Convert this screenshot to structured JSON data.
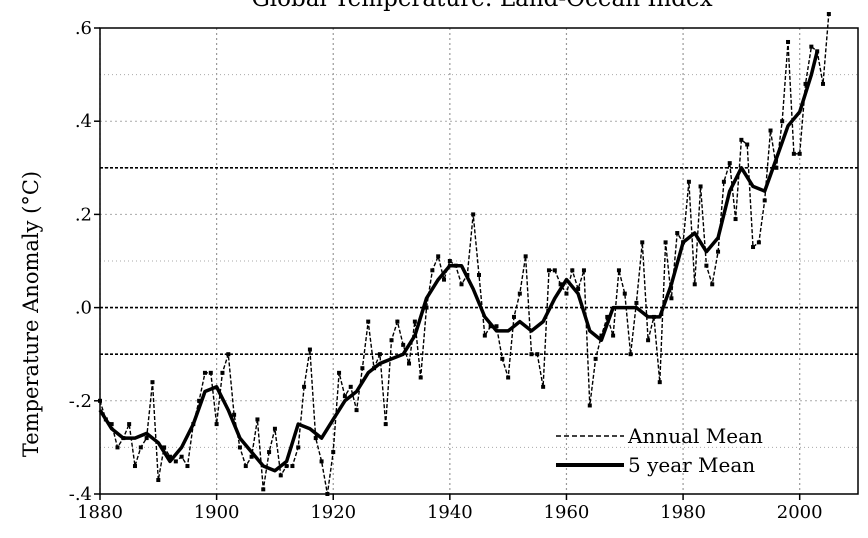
{
  "chart_data": {
    "type": "line",
    "title": "Global Temperature: Land-Ocean Index",
    "ylabel": "Temperature Anomaly (°C)",
    "xlabel": "",
    "xlim": [
      1880,
      2010
    ],
    "ylim": [
      -0.4,
      0.6
    ],
    "x_ticks": [
      1880,
      1900,
      1920,
      1940,
      1960,
      1980,
      2000
    ],
    "x_tick_labels": [
      "1880",
      "1900",
      "1920",
      "1940",
      "1960",
      "1980",
      "2000"
    ],
    "y_ticks": [
      -0.4,
      -0.2,
      0.0,
      0.2,
      0.4,
      0.6
    ],
    "y_tick_labels": [
      "-.4",
      "-.2",
      ".0",
      ".2",
      ".4",
      ".6"
    ],
    "grid": true,
    "reference_lines": [
      -0.1,
      0.0,
      0.3
    ],
    "legend_position": "bottom-right",
    "series": [
      {
        "name": "Annual Mean",
        "style": "dashed-with-markers",
        "color": "#000000",
        "x": [
          1880,
          1881,
          1882,
          1883,
          1884,
          1885,
          1886,
          1887,
          1888,
          1889,
          1890,
          1891,
          1892,
          1893,
          1894,
          1895,
          1896,
          1897,
          1898,
          1899,
          1900,
          1901,
          1902,
          1903,
          1904,
          1905,
          1906,
          1907,
          1908,
          1909,
          1910,
          1911,
          1912,
          1913,
          1914,
          1915,
          1916,
          1917,
          1918,
          1919,
          1920,
          1921,
          1922,
          1923,
          1924,
          1925,
          1926,
          1927,
          1928,
          1929,
          1930,
          1931,
          1932,
          1933,
          1934,
          1935,
          1936,
          1937,
          1938,
          1939,
          1940,
          1941,
          1942,
          1943,
          1944,
          1945,
          1946,
          1947,
          1948,
          1949,
          1950,
          1951,
          1952,
          1953,
          1954,
          1955,
          1956,
          1957,
          1958,
          1959,
          1960,
          1961,
          1962,
          1963,
          1964,
          1965,
          1966,
          1967,
          1968,
          1969,
          1970,
          1971,
          1972,
          1973,
          1974,
          1975,
          1976,
          1977,
          1978,
          1979,
          1980,
          1981,
          1982,
          1983,
          1984,
          1985,
          1986,
          1987,
          1988,
          1989,
          1990,
          1991,
          1992,
          1993,
          1994,
          1995,
          1996,
          1997,
          1998,
          1999,
          2000,
          2001,
          2002,
          2003,
          2004,
          2005
        ],
        "y": [
          -0.2,
          -0.24,
          -0.25,
          -0.3,
          -0.28,
          -0.25,
          -0.34,
          -0.3,
          -0.28,
          -0.16,
          -0.37,
          -0.3,
          -0.32,
          -0.33,
          -0.32,
          -0.34,
          -0.25,
          -0.2,
          -0.14,
          -0.14,
          -0.25,
          -0.14,
          -0.1,
          -0.23,
          -0.3,
          -0.34,
          -0.32,
          -0.24,
          -0.39,
          -0.31,
          -0.26,
          -0.36,
          -0.34,
          -0.34,
          -0.3,
          -0.17,
          -0.09,
          -0.28,
          -0.33,
          -0.4,
          -0.31,
          -0.14,
          -0.19,
          -0.17,
          -0.22,
          -0.13,
          -0.03,
          -0.13,
          -0.1,
          -0.25,
          -0.07,
          -0.03,
          -0.08,
          -0.12,
          -0.03,
          -0.15,
          0.0,
          0.08,
          0.11,
          0.06,
          0.1,
          0.09,
          0.05,
          0.07,
          0.2,
          0.07,
          -0.06,
          -0.04,
          -0.04,
          -0.11,
          -0.15,
          -0.02,
          0.03,
          0.11,
          -0.1,
          -0.1,
          -0.17,
          0.08,
          0.08,
          0.05,
          0.03,
          0.08,
          0.04,
          0.08,
          -0.21,
          -0.11,
          -0.06,
          -0.02,
          -0.06,
          0.08,
          0.03,
          -0.1,
          0.01,
          0.14,
          -0.07,
          -0.02,
          -0.16,
          0.14,
          0.02,
          0.16,
          0.14,
          0.27,
          0.05,
          0.26,
          0.09,
          0.05,
          0.12,
          0.27,
          0.31,
          0.19,
          0.36,
          0.35,
          0.13,
          0.14,
          0.23,
          0.38,
          0.3,
          0.4,
          0.57,
          0.33,
          0.33,
          0.48,
          0.56,
          0.55,
          0.48,
          0.63
        ]
      },
      {
        "name": "5 year Mean",
        "style": "solid-thick",
        "color": "#000000",
        "x": [
          1880,
          1882,
          1884,
          1886,
          1888,
          1890,
          1892,
          1894,
          1896,
          1898,
          1900,
          1902,
          1904,
          1906,
          1908,
          1910,
          1912,
          1914,
          1916,
          1918,
          1920,
          1922,
          1924,
          1926,
          1928,
          1930,
          1932,
          1934,
          1936,
          1938,
          1940,
          1942,
          1944,
          1946,
          1948,
          1950,
          1952,
          1954,
          1956,
          1958,
          1960,
          1962,
          1964,
          1966,
          1968,
          1970,
          1972,
          1974,
          1976,
          1978,
          1980,
          1982,
          1984,
          1986,
          1988,
          1990,
          1992,
          1994,
          1996,
          1998,
          2000,
          2002,
          2003
        ],
        "y": [
          -0.22,
          -0.26,
          -0.28,
          -0.28,
          -0.27,
          -0.29,
          -0.33,
          -0.3,
          -0.25,
          -0.18,
          -0.17,
          -0.22,
          -0.28,
          -0.31,
          -0.34,
          -0.35,
          -0.33,
          -0.25,
          -0.26,
          -0.28,
          -0.24,
          -0.2,
          -0.18,
          -0.14,
          -0.12,
          -0.11,
          -0.1,
          -0.06,
          0.02,
          0.06,
          0.09,
          0.09,
          0.04,
          -0.02,
          -0.05,
          -0.05,
          -0.03,
          -0.05,
          -0.03,
          0.02,
          0.06,
          0.03,
          -0.05,
          -0.07,
          0.0,
          0.0,
          0.0,
          -0.02,
          -0.02,
          0.05,
          0.14,
          0.16,
          0.12,
          0.15,
          0.25,
          0.3,
          0.26,
          0.25,
          0.32,
          0.39,
          0.42,
          0.5,
          0.55
        ]
      }
    ]
  }
}
